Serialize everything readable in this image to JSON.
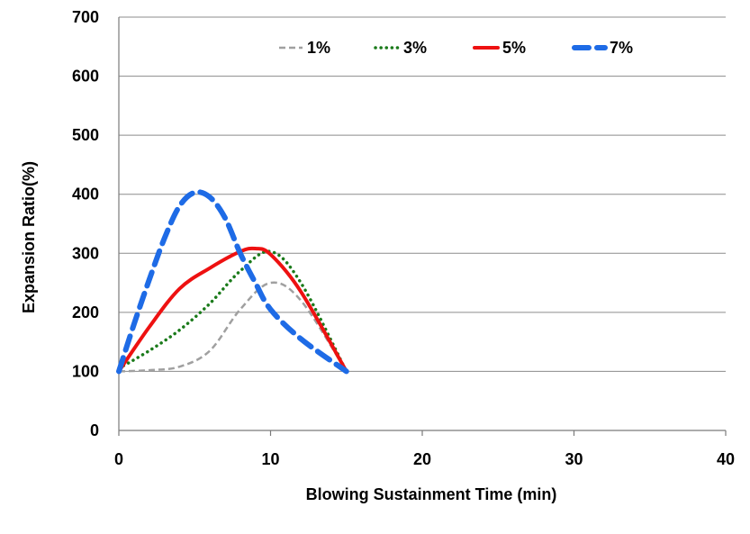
{
  "chart_data": {
    "type": "line",
    "title": "",
    "xlabel": "Blowing Sustainment Time (min)",
    "ylabel": "Expansion Ratio(%)",
    "xlim": [
      0,
      40
    ],
    "ylim": [
      0,
      700
    ],
    "xticks": [
      0,
      10,
      20,
      30,
      40
    ],
    "yticks": [
      0,
      100,
      200,
      300,
      400,
      500,
      600,
      700
    ],
    "grid": "horizontal",
    "legend_position": "top",
    "series": [
      {
        "name": "1%",
        "color": "#a0a0a0",
        "style": "dashed-thin",
        "x": [
          0,
          2,
          4,
          6,
          8,
          10,
          12,
          15
        ],
        "y": [
          100,
          102,
          108,
          135,
          205,
          250,
          220,
          100
        ]
      },
      {
        "name": "3%",
        "color": "#1a7a1a",
        "style": "dotted",
        "x": [
          0,
          2,
          4,
          6,
          8,
          10,
          12,
          15
        ],
        "y": [
          105,
          135,
          170,
          215,
          270,
          303,
          250,
          100
        ]
      },
      {
        "name": "5%",
        "color": "#ee1111",
        "style": "solid",
        "x": [
          0,
          2,
          4,
          6,
          8,
          9,
          10,
          12,
          15
        ],
        "y": [
          100,
          175,
          240,
          275,
          303,
          308,
          298,
          235,
          100
        ]
      },
      {
        "name": "7%",
        "color": "#1e6be6",
        "style": "dashed-thick",
        "x": [
          0,
          1,
          2,
          3,
          4,
          5,
          6,
          7,
          8,
          9,
          10,
          12,
          15
        ],
        "y": [
          100,
          180,
          255,
          325,
          380,
          403,
          395,
          360,
          300,
          250,
          205,
          155,
          100
        ]
      }
    ]
  }
}
